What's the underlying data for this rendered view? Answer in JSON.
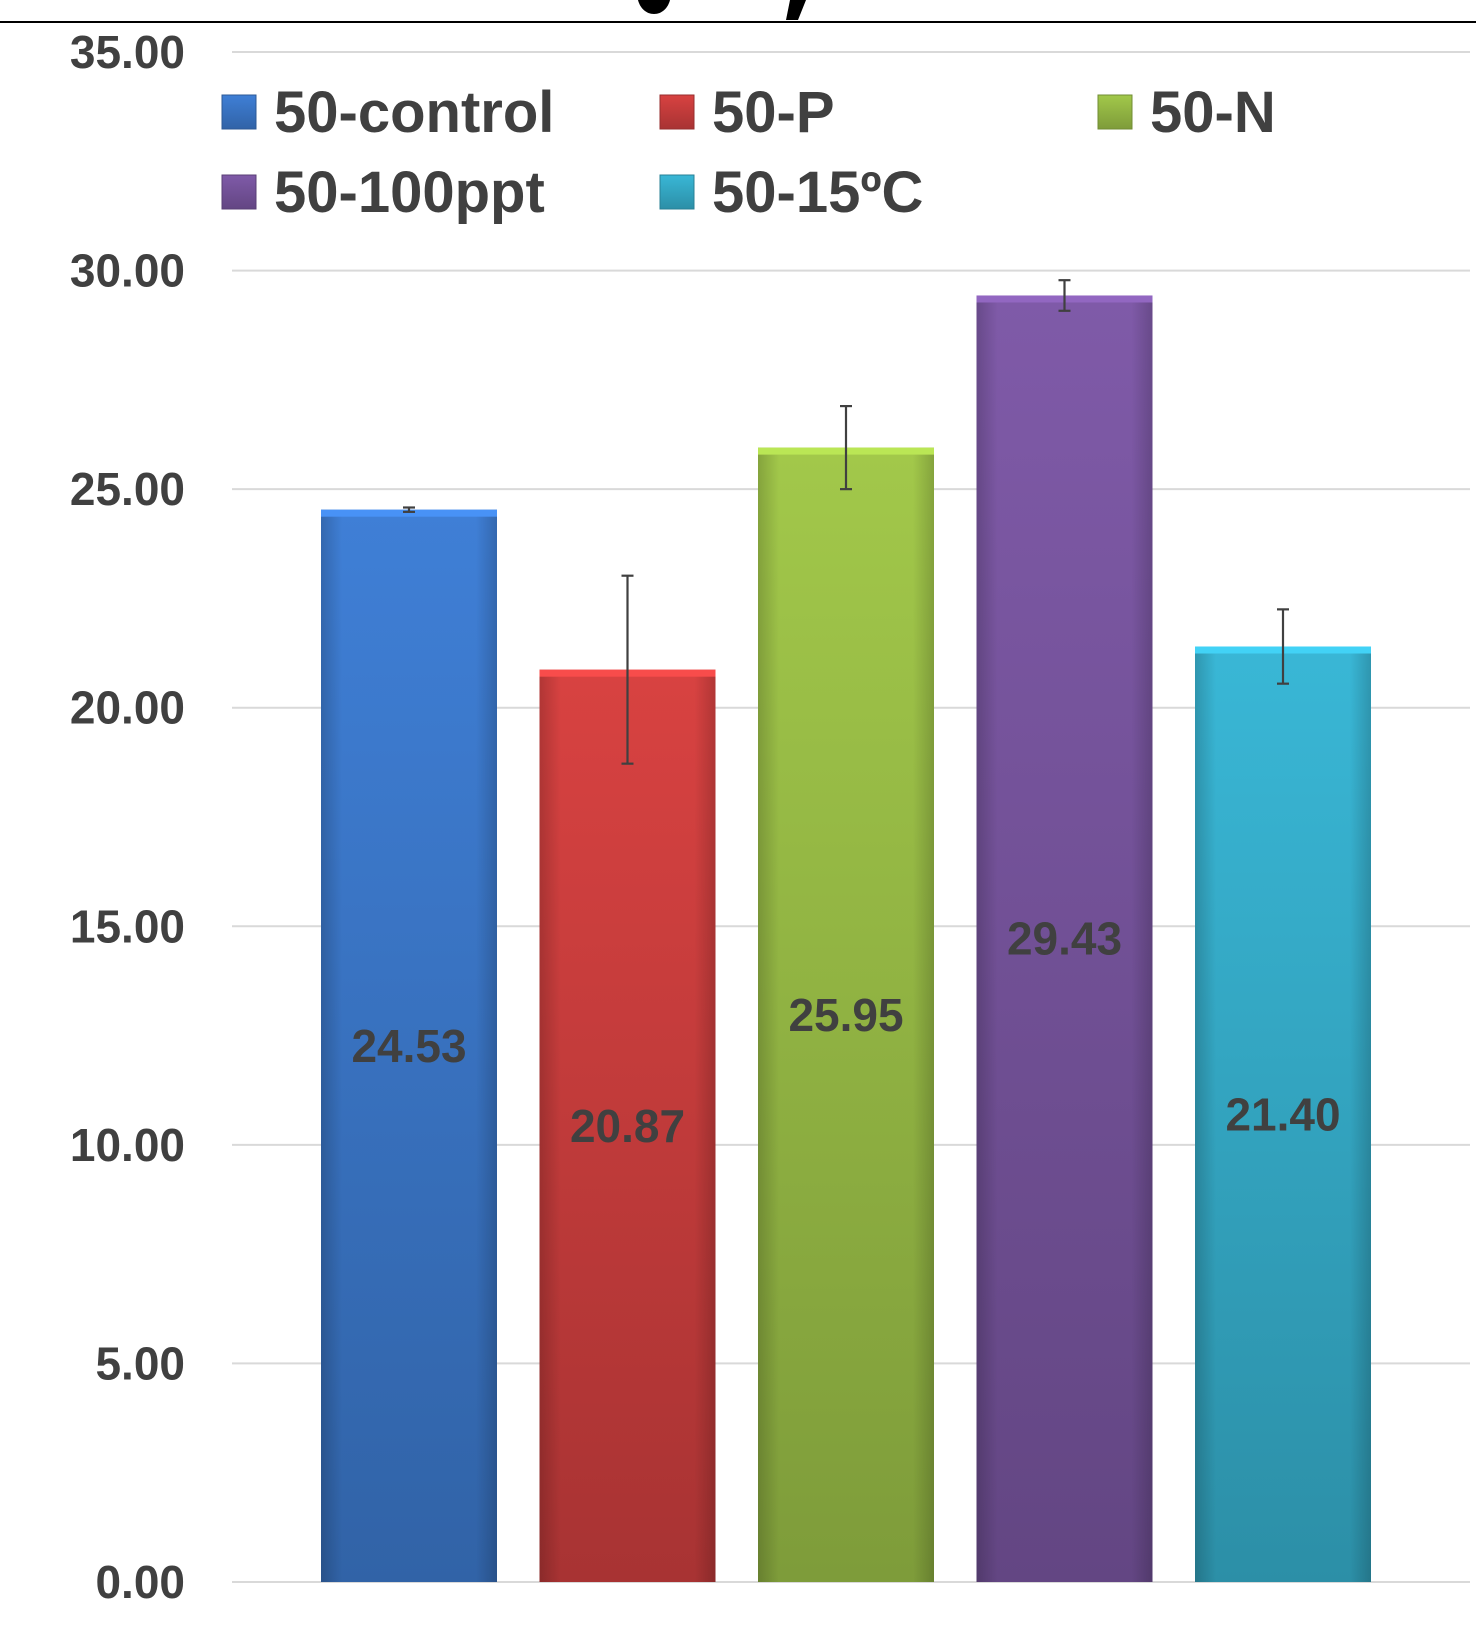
{
  "chart_data": {
    "type": "bar",
    "title": "",
    "xlabel": "",
    "ylabel": "",
    "ylim": [
      0,
      35
    ],
    "yticks": [
      0,
      5,
      10,
      15,
      20,
      25,
      30,
      35
    ],
    "ytick_labels": [
      "0.00",
      "5.00",
      "10.00",
      "15.00",
      "20.00",
      "25.00",
      "30.00",
      "35.00"
    ],
    "grid": true,
    "legend_position": "top",
    "categories": [
      "50-control",
      "50-P",
      "50-N",
      "50-100ppt",
      "50-15ºC"
    ],
    "values": [
      24.53,
      20.87,
      25.95,
      29.43,
      21.4
    ],
    "data_labels": [
      "24.53",
      "20.87",
      "25.95",
      "29.43",
      "21.40"
    ],
    "error": [
      0.05,
      2.15,
      0.95,
      0.35,
      0.85
    ],
    "colors": [
      "#3F7FD6",
      "#D84241",
      "#A2C84A",
      "#7F5AA8",
      "#39B7D6"
    ],
    "legend": [
      {
        "label": "50-control",
        "color": "#3F7FD6"
      },
      {
        "label": "50-P",
        "color": "#D84241"
      },
      {
        "label": "50-N",
        "color": "#A2C84A"
      },
      {
        "label": "50-100ppt",
        "color": "#7F5AA8"
      },
      {
        "label": "50-15ºC",
        "color": "#39B7D6"
      }
    ]
  }
}
